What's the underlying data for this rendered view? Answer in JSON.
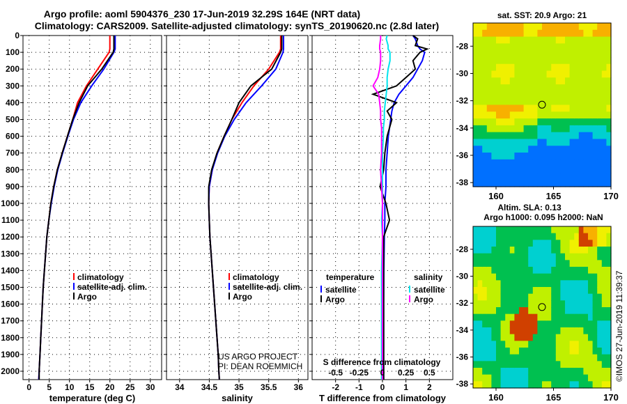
{
  "title_line1": "Argo profile: aoml 5904376_230 17-Jun-2019 32.29S 164E (NRT data)",
  "title_line2": "Climatology: CARS2009. Satellite-adjusted climatology: synTS_20190620.nc (2.8d later)",
  "credit_line1": "US ARGO PROJECT",
  "credit_line2": "PI: DEAN ROEMMICH",
  "side_stamp": "©IMOS 27-Jun-2019 11:39:37",
  "colors": {
    "climatology": "#ff0000",
    "satellite": "#0000ff",
    "argo": "#000000",
    "sal_satellite": "#00e5ee",
    "sal_argo": "#ff00ff"
  },
  "chart_data": [
    {
      "type": "line",
      "name": "temperature",
      "xlabel": "temperature (deg C)",
      "ylabel": "depth",
      "xticks": [
        "0",
        "5",
        "10",
        "15",
        "20",
        "25",
        "30"
      ],
      "xtick_values": [
        0,
        5,
        10,
        15,
        20,
        25,
        30
      ],
      "xlim": [
        -1.5,
        32.8
      ],
      "ylim": [
        2050,
        0
      ],
      "yticks": [
        "0",
        "100",
        "200",
        "300",
        "400",
        "500",
        "600",
        "700",
        "800",
        "900",
        "1000",
        "1100",
        "1200",
        "1300",
        "1400",
        "1500",
        "1600",
        "1700",
        "1800",
        "1900",
        "2000"
      ],
      "depth": [
        0,
        80,
        100,
        200,
        300,
        400,
        500,
        600,
        700,
        800,
        900,
        1000,
        1100,
        1200,
        1300,
        1400,
        1500,
        1600,
        1700,
        1800,
        1900,
        2000,
        2050
      ],
      "series": [
        {
          "name": "climatology",
          "color": "#ff0000",
          "values": [
            20,
            20,
            19.8,
            17,
            14.2,
            12,
            10.8,
            9.5,
            8.2,
            7,
            6.1,
            5.4,
            4.9,
            4.4,
            4.1,
            3.8,
            3.5,
            3.3,
            3.1,
            2.9,
            2.7,
            2.5,
            2.4
          ]
        },
        {
          "name": "satellite-adj. clim.",
          "color": "#0000ff",
          "values": [
            21.3,
            21.3,
            21,
            18.5,
            15.5,
            12.8,
            11,
            9.6,
            8.3,
            7.1,
            6.2,
            5.5,
            4.9,
            4.4,
            4.1,
            3.8,
            3.5,
            3.3,
            3.1,
            2.9,
            2.7,
            2.5,
            2.4
          ]
        },
        {
          "name": "Argo",
          "color": "#000000",
          "values": [
            21,
            21,
            20.8,
            18,
            14.5,
            12.4,
            10.8,
            9.5,
            8.2,
            7,
            6.1,
            5.4,
            4.9,
            4.4,
            4.1,
            3.8,
            3.5,
            3.3,
            3.1,
            2.9,
            2.7,
            2.5,
            2.5
          ]
        }
      ],
      "legend": [
        "climatology",
        "satellite-adj. clim.",
        "Argo"
      ]
    },
    {
      "type": "line",
      "name": "salinity",
      "xlabel": "salinity",
      "xticks": [
        "34",
        "34.5",
        "35",
        "35.5",
        "36"
      ],
      "xtick_values": [
        34,
        34.5,
        35,
        35.5,
        36
      ],
      "xlim": [
        33.78,
        36.16
      ],
      "ylim": [
        2050,
        0
      ],
      "depth": [
        0,
        80,
        100,
        200,
        300,
        400,
        500,
        600,
        700,
        800,
        900,
        1000,
        1100,
        1200,
        1300,
        1400,
        1500,
        1600,
        1700,
        1800,
        1900,
        2000,
        2050
      ],
      "series": [
        {
          "name": "climatology",
          "color": "#ff0000",
          "values": [
            35.7,
            35.7,
            35.68,
            35.5,
            35.25,
            35.05,
            34.88,
            34.75,
            34.63,
            34.55,
            34.5,
            34.49,
            34.5,
            34.51,
            34.53,
            34.55,
            34.57,
            34.59,
            34.61,
            34.63,
            34.65,
            34.66,
            34.67
          ]
        },
        {
          "name": "satellite-adj. clim.",
          "color": "#0000ff",
          "values": [
            35.75,
            35.75,
            35.74,
            35.62,
            35.38,
            35.12,
            34.92,
            34.76,
            34.64,
            34.55,
            34.5,
            34.49,
            34.5,
            34.51,
            34.53,
            34.55,
            34.57,
            34.59,
            34.61,
            34.63,
            34.65,
            34.66,
            34.67
          ]
        },
        {
          "name": "Argo",
          "color": "#000000",
          "values": [
            35.72,
            35.72,
            35.7,
            35.55,
            35.2,
            35.0,
            34.88,
            34.75,
            34.63,
            34.54,
            34.49,
            34.49,
            34.5,
            34.51,
            34.53,
            34.55,
            34.57,
            34.59,
            34.61,
            34.63,
            34.65,
            34.66,
            34.67
          ]
        }
      ],
      "legend": [
        "climatology",
        "satellite-adj. clim.",
        "Argo"
      ]
    },
    {
      "type": "line",
      "name": "differences",
      "xlabel": "T difference from climatology",
      "xticks": [
        "-2",
        "-1",
        "0",
        "1",
        "2"
      ],
      "xtick_values": [
        -2,
        -1,
        0,
        1,
        2
      ],
      "x2label": "S difference from climatology",
      "x2ticks": [
        "-0.5",
        "-0.25",
        "0",
        "0.25",
        "0.5"
      ],
      "x2tick_values": [
        -0.5,
        -0.25,
        0,
        0.25,
        0.5
      ],
      "xlim": [
        -3,
        3
      ],
      "ylim": [
        2050,
        0
      ],
      "depth": [
        0,
        20,
        60,
        80,
        100,
        150,
        200,
        250,
        300,
        350,
        400,
        450,
        500,
        550,
        600,
        700,
        800,
        900,
        1000,
        1100,
        1200,
        1400,
        1600,
        1800,
        2000,
        2050
      ],
      "series": [
        {
          "name": "T satellite",
          "color": "#0000ff",
          "values": [
            1.3,
            1.4,
            1.5,
            1.6,
            1.8,
            1.7,
            1.5,
            1.3,
            1.0,
            0.7,
            0.5,
            0.4,
            0.35,
            0.3,
            0.25,
            0.2,
            0.15,
            0.15,
            0.1,
            0.1,
            0.08,
            0.06,
            0.05,
            0.05,
            0.05,
            0.05
          ]
        },
        {
          "name": "T Argo",
          "color": "#000000",
          "values": [
            1.3,
            1.5,
            1.4,
            1.9,
            1.6,
            1.3,
            1.4,
            1.0,
            0.6,
            -0.4,
            0.6,
            0.2,
            0.4,
            0.3,
            0.2,
            0.1,
            0.05,
            -0.1,
            0.15,
            0.3,
            0.05,
            0.05,
            0.05,
            0.05,
            0.05,
            0.05
          ]
        },
        {
          "name": "S satellite",
          "color": "#00e5ee",
          "values": [
            0.05,
            0.04,
            0.06,
            0.06,
            0.08,
            0.08,
            0.06,
            0.05,
            0.05,
            0.04,
            0.03,
            0.02,
            0.02,
            0.01,
            0.01,
            0.0,
            0.0,
            0.0,
            0.0,
            -0.01,
            0.0,
            -0.01,
            -0.01,
            -0.01,
            -0.01,
            -0.01
          ]
        },
        {
          "name": "S Argo",
          "color": "#ff00ff",
          "values": [
            -0.02,
            -0.02,
            -0.03,
            -0.03,
            -0.02,
            -0.02,
            -0.03,
            -0.05,
            -0.1,
            -0.04,
            -0.03,
            -0.02,
            -0.02,
            -0.01,
            -0.01,
            -0.01,
            -0.02,
            -0.01,
            0.0,
            0.0,
            0.0,
            0.0,
            0.0,
            0.0,
            0.0,
            0.0
          ]
        }
      ],
      "legend_left_title": "temperature",
      "legend_right_title": "salinity",
      "legend_left": [
        "satellite",
        "Argo"
      ],
      "legend_right": [
        "satellite",
        "Argo"
      ]
    },
    {
      "type": "heatmap",
      "name": "sst-map",
      "title": "sat. SST: 20.9 Argo: 21",
      "xticks": [
        "160",
        "165",
        "170"
      ],
      "yticks": [
        "-28",
        "-30",
        "-32",
        "-34",
        "-36",
        "-38"
      ],
      "xlim": [
        158,
        170
      ],
      "ylim": [
        -38.3,
        -26.3
      ],
      "marker": {
        "lon": 164,
        "lat": -32.29
      }
    },
    {
      "type": "heatmap",
      "name": "sla-map",
      "title": "Altim. SLA: 0.13",
      "subtitle": "Argo h1000: 0.095 h2000: NaN",
      "xticks": [
        "160",
        "165",
        "170"
      ],
      "yticks": [
        "-28",
        "-30",
        "-32",
        "-34",
        "-36",
        "-38"
      ],
      "xlim": [
        158,
        170
      ],
      "ylim": [
        -38.3,
        -26.3
      ],
      "marker": {
        "lon": 164,
        "lat": -32.29
      }
    }
  ]
}
